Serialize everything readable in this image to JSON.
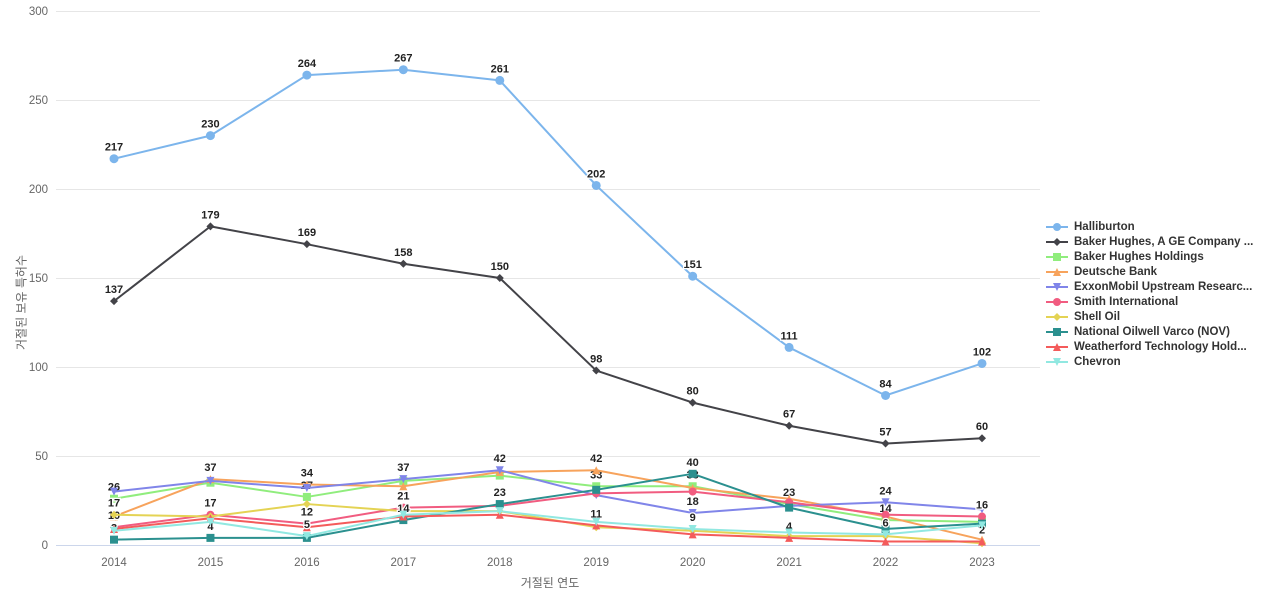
{
  "chart_data": {
    "type": "line",
    "title": "",
    "xlabel": "거절된 연도",
    "ylabel": "거절된 보유 특허수",
    "x": [
      2014,
      2015,
      2016,
      2017,
      2018,
      2019,
      2020,
      2021,
      2022,
      2023
    ],
    "ylim": [
      0,
      300
    ],
    "yticks": [
      0,
      50,
      100,
      150,
      200,
      250,
      300
    ],
    "grid": "horizontal-only",
    "legend_position": "right",
    "series": [
      {
        "name": "Halliburton",
        "color": "#7cb5ec",
        "marker": "circle",
        "values": [
          217,
          230,
          264,
          267,
          261,
          202,
          151,
          111,
          84,
          102
        ],
        "labels": [
          217,
          230,
          264,
          267,
          261,
          202,
          151,
          111,
          84,
          102
        ]
      },
      {
        "name": "Baker Hughes, A GE Company ...",
        "color": "#434348",
        "marker": "diamond",
        "values": [
          137,
          179,
          169,
          158,
          150,
          98,
          80,
          67,
          57,
          60
        ],
        "labels": [
          137,
          179,
          169,
          158,
          150,
          98,
          80,
          67,
          57,
          60
        ]
      },
      {
        "name": "Baker Hughes Holdings",
        "color": "#90ed7d",
        "marker": "square",
        "values": [
          26,
          35,
          27,
          36,
          39,
          33,
          33,
          23,
          14,
          13
        ],
        "labels": [
          26,
          null,
          27,
          null,
          null,
          33,
          33,
          23,
          14,
          null
        ]
      },
      {
        "name": "Deutsche Bank",
        "color": "#f7a35c",
        "marker": "triangle",
        "values": [
          16,
          37,
          34,
          33,
          41,
          42,
          32,
          26,
          16,
          3
        ],
        "labels": [
          null,
          37,
          34,
          null,
          null,
          42,
          null,
          null,
          null,
          null
        ]
      },
      {
        "name": "ExxonMobil Upstream Researc...",
        "color": "#8085e9",
        "marker": "triangle-down",
        "values": [
          30,
          36,
          32,
          37,
          42,
          28,
          18,
          22,
          24,
          20
        ],
        "labels": [
          null,
          null,
          null,
          37,
          42,
          null,
          18,
          null,
          24,
          null
        ]
      },
      {
        "name": "Smith International",
        "color": "#f15c80",
        "marker": "circle",
        "values": [
          10,
          17,
          12,
          21,
          22,
          29,
          30,
          24,
          17,
          16
        ],
        "labels": [
          10,
          17,
          12,
          21,
          null,
          null,
          null,
          null,
          null,
          16
        ]
      },
      {
        "name": "Shell Oil",
        "color": "#e4d354",
        "marker": "diamond",
        "values": [
          17,
          16,
          23,
          19,
          19,
          10,
          8,
          5,
          5,
          1
        ],
        "labels": [
          17,
          null,
          null,
          null,
          null,
          null,
          null,
          null,
          null,
          null
        ]
      },
      {
        "name": "National Oilwell Varco (NOV)",
        "color": "#2b908f",
        "marker": "square",
        "values": [
          3,
          4,
          4,
          14,
          23,
          31,
          40,
          21,
          9,
          12
        ],
        "labels": [
          3,
          4,
          null,
          14,
          23,
          null,
          40,
          null,
          null,
          null
        ]
      },
      {
        "name": "Weatherford Technology Hold...",
        "color": "#f45b5b",
        "marker": "triangle",
        "values": [
          9,
          15,
          10,
          16,
          17,
          11,
          6,
          4,
          2,
          2
        ],
        "labels": [
          null,
          null,
          null,
          null,
          null,
          11,
          null,
          4,
          null,
          2
        ]
      },
      {
        "name": "Chevron",
        "color": "#91e8e1",
        "marker": "triangle-down",
        "values": [
          8,
          13,
          5,
          17,
          19,
          13,
          9,
          7,
          6,
          11
        ],
        "labels": [
          null,
          null,
          5,
          null,
          null,
          null,
          9,
          null,
          6,
          null
        ]
      }
    ]
  }
}
